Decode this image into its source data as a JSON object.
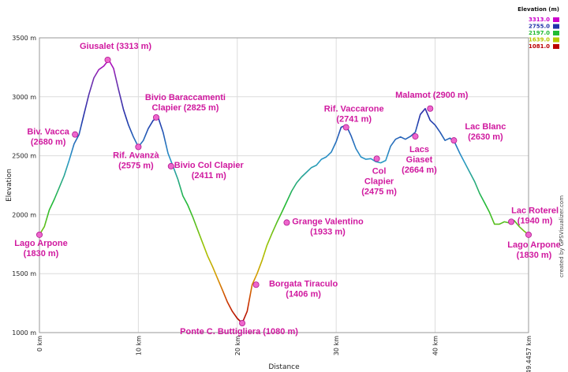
{
  "chart_data": {
    "type": "line",
    "xlabel": "Distance",
    "ylabel": "Elevation",
    "xlim": [
      0,
      49.4457
    ],
    "ylim": [
      1000,
      3500
    ],
    "x_ticks": [
      {
        "value": 0,
        "label": "0 km"
      },
      {
        "value": 10,
        "label": "10 km"
      },
      {
        "value": 20,
        "label": "20 km"
      },
      {
        "value": 30,
        "label": "30 km"
      },
      {
        "value": 40,
        "label": "40 km"
      },
      {
        "value": 49.4457,
        "label": "49.4457 km"
      }
    ],
    "y_ticks": [
      {
        "value": 1000,
        "label": "1000 m"
      },
      {
        "value": 1500,
        "label": "1500 m"
      },
      {
        "value": 2000,
        "label": "2000 m"
      },
      {
        "value": 2500,
        "label": "2500 m"
      },
      {
        "value": 3000,
        "label": "3000 m"
      },
      {
        "value": 3500,
        "label": "3500 m"
      }
    ],
    "grid": true,
    "legend": {
      "title": "Elevation (m)",
      "placement": "top-right",
      "entries": [
        {
          "label": "3313.0",
          "color": "#cc00cc"
        },
        {
          "label": "2755.0",
          "color": "#2233aa"
        },
        {
          "label": "2197.0",
          "color": "#22bb33"
        },
        {
          "label": "1639.0",
          "color": "#b8c800"
        },
        {
          "label": "1081.0",
          "color": "#bb0000"
        }
      ]
    },
    "series": [
      {
        "x": [
          0,
          0.5,
          1,
          1.5,
          2,
          2.5,
          3,
          3.5,
          4,
          4.5,
          5,
          5.5,
          6,
          6.5,
          7,
          7.5,
          8,
          8.5,
          9,
          9.5,
          10,
          10.5,
          11,
          11.5,
          12,
          12.5,
          13,
          13.5,
          14,
          14.5,
          15,
          15.5,
          16,
          16.5,
          17,
          17.5,
          18,
          18.5,
          19,
          19.5,
          20,
          20.5,
          21,
          21.5,
          22,
          22.5,
          23,
          23.5,
          24,
          24.5,
          25,
          25.5,
          26,
          26.5,
          27,
          27.5,
          28,
          28.5,
          29,
          29.5,
          30,
          30.5,
          31,
          31.5,
          32,
          32.5,
          33,
          33.5,
          34,
          34.5,
          35,
          35.5,
          36,
          36.5,
          37,
          37.5,
          38,
          38.5,
          39,
          39.5,
          40,
          40.5,
          41,
          41.5,
          42,
          42.5,
          43,
          43.5,
          44,
          44.5,
          45,
          45.5,
          46,
          46.5,
          47,
          47.5,
          48,
          48.5,
          49,
          49.4457
        ],
        "y": [
          1830,
          1900,
          2040,
          2130,
          2230,
          2330,
          2460,
          2600,
          2680,
          2850,
          3020,
          3160,
          3230,
          3260,
          3313,
          3240,
          3060,
          2890,
          2760,
          2660,
          2575,
          2630,
          2730,
          2800,
          2825,
          2700,
          2520,
          2411,
          2300,
          2160,
          2080,
          1980,
          1870,
          1760,
          1650,
          1560,
          1460,
          1360,
          1260,
          1180,
          1120,
          1080,
          1180,
          1406,
          1500,
          1610,
          1740,
          1840,
          1933,
          2020,
          2110,
          2200,
          2270,
          2320,
          2360,
          2400,
          2420,
          2470,
          2490,
          2530,
          2620,
          2741,
          2760,
          2670,
          2560,
          2490,
          2470,
          2475,
          2450,
          2440,
          2460,
          2580,
          2640,
          2660,
          2640,
          2664,
          2700,
          2850,
          2900,
          2800,
          2760,
          2700,
          2630,
          2650,
          2610,
          2520,
          2440,
          2360,
          2280,
          2180,
          2100,
          2020,
          1920,
          1920,
          1940,
          1930,
          1950,
          1900,
          1860,
          1830
        ]
      }
    ],
    "waypoints": [
      {
        "label": "Lago Arpone",
        "elev": "(1830 m)",
        "x": 0,
        "y": 1830
      },
      {
        "label": "Biv. Vacca",
        "elev": "(2680 m)",
        "x": 3.6,
        "y": 2680
      },
      {
        "label": "Giusalet (3313 m)",
        "elev": "",
        "x": 6.9,
        "y": 3313
      },
      {
        "label": "Rif. Avanzà",
        "elev": "(2575 m)",
        "x": 10,
        "y": 2575
      },
      {
        "label": "Bivio Baraccamenti",
        "elev": "Clapier (2825 m)",
        "x": 11.8,
        "y": 2825
      },
      {
        "label": "Bivio Col Clapier",
        "elev": "(2411 m)",
        "x": 13.3,
        "y": 2411
      },
      {
        "label": "Ponte C. Buttigliera (1080 m)",
        "elev": "",
        "x": 20.5,
        "y": 1080
      },
      {
        "label": "Borgata Tiraculo",
        "elev": "(1406 m)",
        "x": 21.9,
        "y": 1406
      },
      {
        "label": "Grange Valentino",
        "elev": "(1933 m)",
        "x": 25,
        "y": 1933
      },
      {
        "label": "Rif. Vaccarone",
        "elev": "(2741 m)",
        "x": 31,
        "y": 2741
      },
      {
        "label": "Col",
        "elev": "Clapier",
        "extra": "(2475 m)",
        "x": 34.1,
        "y": 2475
      },
      {
        "label": "Lacs",
        "elev": "Giaset",
        "extra": "(2664 m)",
        "x": 38,
        "y": 2664
      },
      {
        "label": "Malamot (2900 m)",
        "elev": "",
        "x": 39.5,
        "y": 2900
      },
      {
        "label": "Lac Blanc",
        "elev": "(2630 m)",
        "x": 41.9,
        "y": 2630
      },
      {
        "label": "Lac Roterel",
        "elev": "(1940 m)",
        "x": 47.7,
        "y": 1940
      },
      {
        "label": "Lago Arpone",
        "elev": "(1830 m)",
        "x": 49.4457,
        "y": 1830
      }
    ]
  },
  "credit": "created by GPSVisualizer.com"
}
